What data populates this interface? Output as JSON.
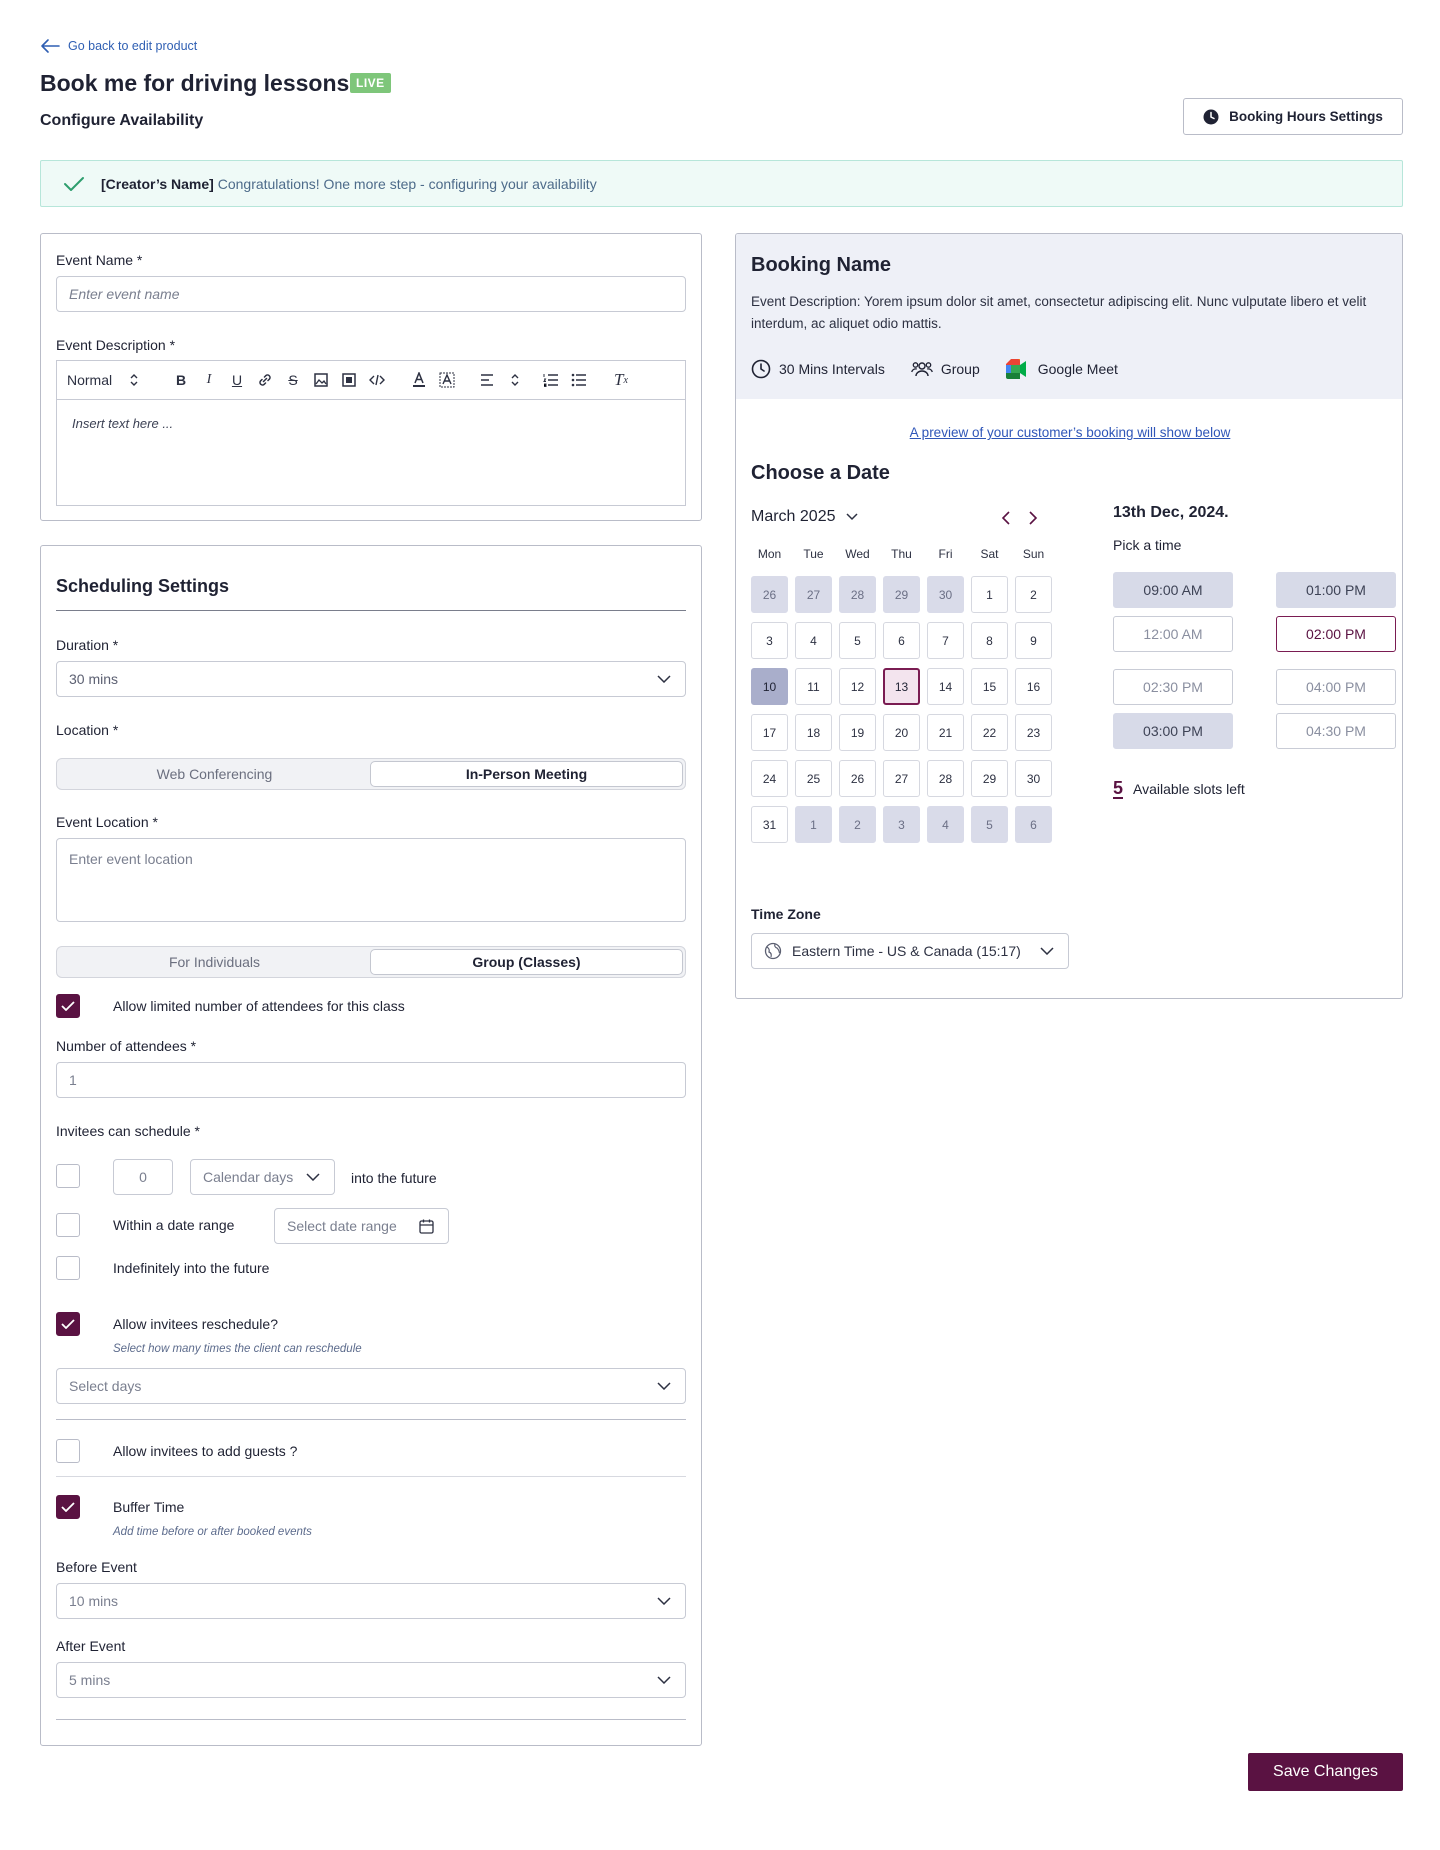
{
  "header": {
    "back_link": "Go back to edit product",
    "title": "Book me for driving lessons",
    "live_badge": "LIVE",
    "subtitle": "Configure Availability",
    "hours_button": "Booking Hours Settings"
  },
  "banner": {
    "name": "[Creator’s Name]",
    "message": "Congratulations! One more step - configuring your availability"
  },
  "event": {
    "name_label": "Event Name *",
    "name_placeholder": "Enter event name",
    "desc_label": "Event Description *",
    "format_select": "Normal",
    "desc_placeholder": "Insert text here ..."
  },
  "scheduling": {
    "title": "Scheduling Settings",
    "duration_label": "Duration *",
    "duration_value": "30 mins",
    "location_label": "Location *",
    "location_options": [
      "Web Conferencing",
      "In-Person Meeting"
    ],
    "event_location_label": "Event Location *",
    "event_location_placeholder": "Enter event location",
    "audience_options": [
      "For Individuals",
      "Group (Classes)"
    ],
    "allow_limited_label": "Allow limited number of attendees for this class",
    "attendees_label": "Number of attendees *",
    "attendees_value": "1",
    "invitees_label": "Invitees can schedule *",
    "days_value": "0",
    "days_unit": "Calendar days",
    "into_future": "into the future",
    "within_range": "Within a date range",
    "date_range_placeholder": "Select date range",
    "indefinitely": "Indefinitely into the future",
    "reschedule_label": "Allow invitees reschedule?",
    "reschedule_hint": "Select how many times the client can reschedule",
    "reschedule_select": "Select days",
    "guests_label": "Allow invitees to add guests ?",
    "buffer_label": "Buffer Time",
    "buffer_hint": "Add time before or after booked events",
    "before_label": "Before Event",
    "before_value": "10 mins",
    "after_label": "After Event",
    "after_value": "5 mins"
  },
  "preview": {
    "booking_name": "Booking Name",
    "description": "Event Description: Yorem ipsum dolor sit amet, consectetur adipiscing elit. Nunc vulputate libero et velit interdum, ac aliquet odio mattis.",
    "interval": "30 Mins Intervals",
    "type": "Group",
    "platform": "Google Meet",
    "preview_link": "A preview of your customer’s booking will show below",
    "choose_date": "Choose a Date",
    "month": "March 2025",
    "weekdays": [
      "Mon",
      "Tue",
      "Wed",
      "Thu",
      "Fri",
      "Sat",
      "Sun"
    ],
    "days": [
      "26",
      "27",
      "28",
      "29",
      "30",
      "1",
      "2",
      "3",
      "4",
      "5",
      "6",
      "7",
      "8",
      "9",
      "10",
      "11",
      "12",
      "13",
      "14",
      "15",
      "16",
      "17",
      "18",
      "19",
      "20",
      "21",
      "22",
      "23",
      "24",
      "25",
      "26",
      "27",
      "28",
      "29",
      "30",
      "31",
      "1",
      "2",
      "3",
      "4",
      "5",
      "6"
    ],
    "selected_date": "13th Dec, 2024.",
    "pick_time": "Pick a time",
    "slots": [
      "09:00 AM",
      "01:00 PM",
      "12:00 AM",
      "02:00 PM",
      "02:30 PM",
      "04:00 PM",
      "03:00 PM",
      "04:30 PM"
    ],
    "slots_count": "5",
    "slots_left": "Available slots left",
    "timezone_label": "Time Zone",
    "timezone_value": "Eastern Time - US & Canada (15:17)"
  },
  "footer": {
    "save": "Save Changes"
  },
  "colors": {
    "primary": "#5a1242",
    "live": "#7ec67a",
    "link": "#2f56b8",
    "muted_day": "#d9dbe9"
  }
}
